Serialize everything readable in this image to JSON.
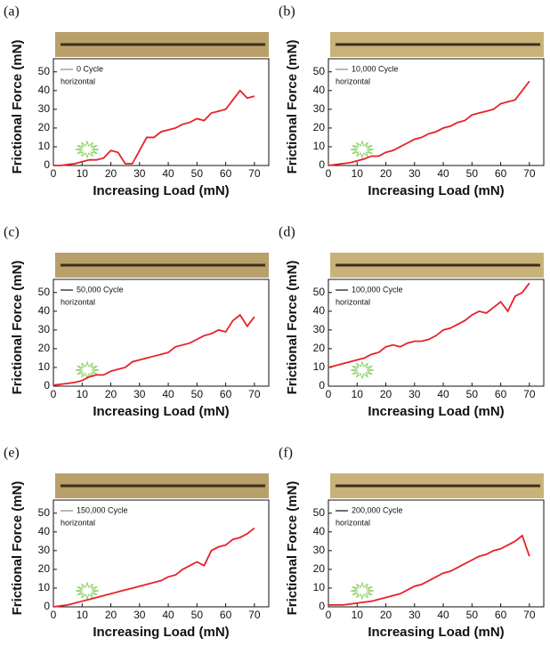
{
  "chart_data": [
    {
      "type": "line",
      "panel_label": "(a)",
      "xlabel": "Increasing Load (mN)",
      "ylabel": "Frictional Force (mN)",
      "legend_note": "horizontal",
      "legend_color": "#888888",
      "x": [
        0,
        2.5,
        5,
        7.5,
        10,
        12.5,
        15,
        17.5,
        20,
        22.5,
        25,
        27.5,
        30,
        32.5,
        35,
        37.5,
        40,
        42.5,
        45,
        47.5,
        50,
        52.5,
        55,
        57.5,
        60,
        62.5,
        65,
        67.5,
        70
      ],
      "series": [
        {
          "name": "0 Cycle",
          "color": "#e8202a",
          "values": [
            0,
            0,
            0.5,
            1,
            2,
            3,
            3,
            4,
            8,
            7,
            1,
            1,
            8,
            15,
            15,
            18,
            19,
            20,
            22,
            23,
            25,
            24,
            28,
            29,
            30,
            35,
            40,
            36,
            37
          ]
        }
      ],
      "xlim": [
        0,
        75
      ],
      "ylim": [
        0,
        57
      ],
      "xticks": [
        0,
        10,
        20,
        30,
        40,
        50,
        60,
        70
      ],
      "yticks": [
        0,
        10,
        20,
        30,
        40,
        50
      ]
    },
    {
      "type": "line",
      "panel_label": "(b)",
      "xlabel": "Increasing Load (mN)",
      "ylabel": "Frictional Force (mN)",
      "legend_note": "horizontal",
      "legend_color": "#888888",
      "x": [
        0,
        2.5,
        5,
        7.5,
        10,
        12.5,
        15,
        17.5,
        20,
        22.5,
        25,
        27.5,
        30,
        32.5,
        35,
        37.5,
        40,
        42.5,
        45,
        47.5,
        50,
        52.5,
        55,
        57.5,
        60,
        62.5,
        65,
        67.5,
        70
      ],
      "series": [
        {
          "name": "10,000 Cycle",
          "color": "#e8202a",
          "values": [
            0,
            0.5,
            1,
            1.5,
            2.5,
            3.5,
            5,
            5,
            7,
            8,
            10,
            12,
            14,
            15,
            17,
            18,
            20,
            21,
            23,
            24,
            27,
            28,
            29,
            30,
            33,
            34,
            35,
            40,
            45
          ]
        }
      ],
      "xlim": [
        0,
        75
      ],
      "ylim": [
        0,
        57
      ],
      "xticks": [
        0,
        10,
        20,
        30,
        40,
        50,
        60,
        70
      ],
      "yticks": [
        0,
        10,
        20,
        30,
        40,
        50
      ]
    },
    {
      "type": "line",
      "panel_label": "(c)",
      "xlabel": "Increasing Load (mN)",
      "ylabel": "Frictional Force (mN)",
      "legend_note": "horizontal",
      "legend_color": "#111111",
      "x": [
        0,
        2.5,
        5,
        7.5,
        10,
        12.5,
        15,
        17.5,
        20,
        22.5,
        25,
        27.5,
        30,
        32.5,
        35,
        37.5,
        40,
        42.5,
        45,
        47.5,
        50,
        52.5,
        55,
        57.5,
        60,
        62.5,
        65,
        67.5,
        70
      ],
      "series": [
        {
          "name": "50,000 Cycle",
          "color": "#e8202a",
          "values": [
            0.5,
            1,
            1.5,
            2,
            3,
            5,
            6,
            6,
            8,
            9,
            10,
            13,
            14,
            15,
            16,
            17,
            18,
            21,
            22,
            23,
            25,
            27,
            28,
            30,
            29,
            35,
            38,
            32,
            37
          ]
        }
      ],
      "xlim": [
        0,
        75
      ],
      "ylim": [
        0,
        57
      ],
      "xticks": [
        0,
        10,
        20,
        30,
        40,
        50,
        60,
        70
      ],
      "yticks": [
        0,
        10,
        20,
        30,
        40,
        50
      ]
    },
    {
      "type": "line",
      "panel_label": "(d)",
      "xlabel": "Increasing Load (mN)",
      "ylabel": "Frictional Force (mN)",
      "legend_note": "horizontal",
      "legend_color": "#111111",
      "x": [
        0,
        2.5,
        5,
        7.5,
        10,
        12.5,
        15,
        17.5,
        20,
        22.5,
        25,
        27.5,
        30,
        32.5,
        35,
        37.5,
        40,
        42.5,
        45,
        47.5,
        50,
        52.5,
        55,
        57.5,
        60,
        62.5,
        65,
        67.5,
        70
      ],
      "series": [
        {
          "name": "100,000 Cycle",
          "color": "#e8202a",
          "values": [
            10,
            11,
            12,
            13,
            14,
            15,
            17,
            18,
            21,
            22,
            21,
            23,
            24,
            24,
            25,
            27,
            30,
            31,
            33,
            35,
            38,
            40,
            39,
            42,
            45,
            40,
            48,
            50,
            55
          ]
        }
      ],
      "xlim": [
        0,
        75
      ],
      "ylim": [
        0,
        57
      ],
      "xticks": [
        0,
        10,
        20,
        30,
        40,
        50,
        60,
        70
      ],
      "yticks": [
        0,
        10,
        20,
        30,
        40,
        50
      ]
    },
    {
      "type": "line",
      "panel_label": "(e)",
      "xlabel": "Increasing Load (mN)",
      "ylabel": "Frictional Force (mN)",
      "legend_note": "horizontal",
      "legend_color": "#888888",
      "x": [
        0,
        2.5,
        5,
        7.5,
        10,
        12.5,
        15,
        17.5,
        20,
        22.5,
        25,
        27.5,
        30,
        32.5,
        35,
        37.5,
        40,
        42.5,
        45,
        47.5,
        50,
        52.5,
        55,
        57.5,
        60,
        62.5,
        65,
        67.5,
        70
      ],
      "series": [
        {
          "name": "150,000 Cycle",
          "color": "#e8202a",
          "values": [
            0,
            0.5,
            1,
            2,
            3,
            4,
            5,
            6,
            7,
            8,
            9,
            10,
            11,
            12,
            13,
            14,
            16,
            17,
            20,
            22,
            24,
            22,
            30,
            32,
            33,
            36,
            37,
            39,
            42
          ]
        }
      ],
      "xlim": [
        0,
        75
      ],
      "ylim": [
        0,
        57
      ],
      "xticks": [
        0,
        10,
        20,
        30,
        40,
        50,
        60,
        70
      ],
      "yticks": [
        0,
        10,
        20,
        30,
        40,
        50
      ]
    },
    {
      "type": "line",
      "panel_label": "(f)",
      "xlabel": "Increasing Load (mN)",
      "ylabel": "Frictional Force (mN)",
      "legend_note": "horizontal",
      "legend_color": "#111111",
      "x": [
        0,
        2.5,
        5,
        7.5,
        10,
        12.5,
        15,
        17.5,
        20,
        22.5,
        25,
        27.5,
        30,
        32.5,
        35,
        37.5,
        40,
        42.5,
        45,
        47.5,
        50,
        52.5,
        55,
        57.5,
        60,
        62.5,
        65,
        67.5,
        70
      ],
      "series": [
        {
          "name": "200,000 Cycle",
          "color": "#e8202a",
          "values": [
            1,
            1,
            1,
            1.5,
            2,
            2.5,
            3,
            4,
            5,
            6,
            7,
            9,
            11,
            12,
            14,
            16,
            18,
            19,
            21,
            23,
            25,
            27,
            28,
            30,
            31,
            33,
            35,
            38,
            27
          ]
        }
      ],
      "xlim": [
        0,
        75
      ],
      "ylim": [
        0,
        57
      ],
      "xticks": [
        0,
        10,
        20,
        30,
        40,
        50,
        60,
        70
      ],
      "yticks": [
        0,
        10,
        20,
        30,
        40,
        50
      ]
    }
  ]
}
